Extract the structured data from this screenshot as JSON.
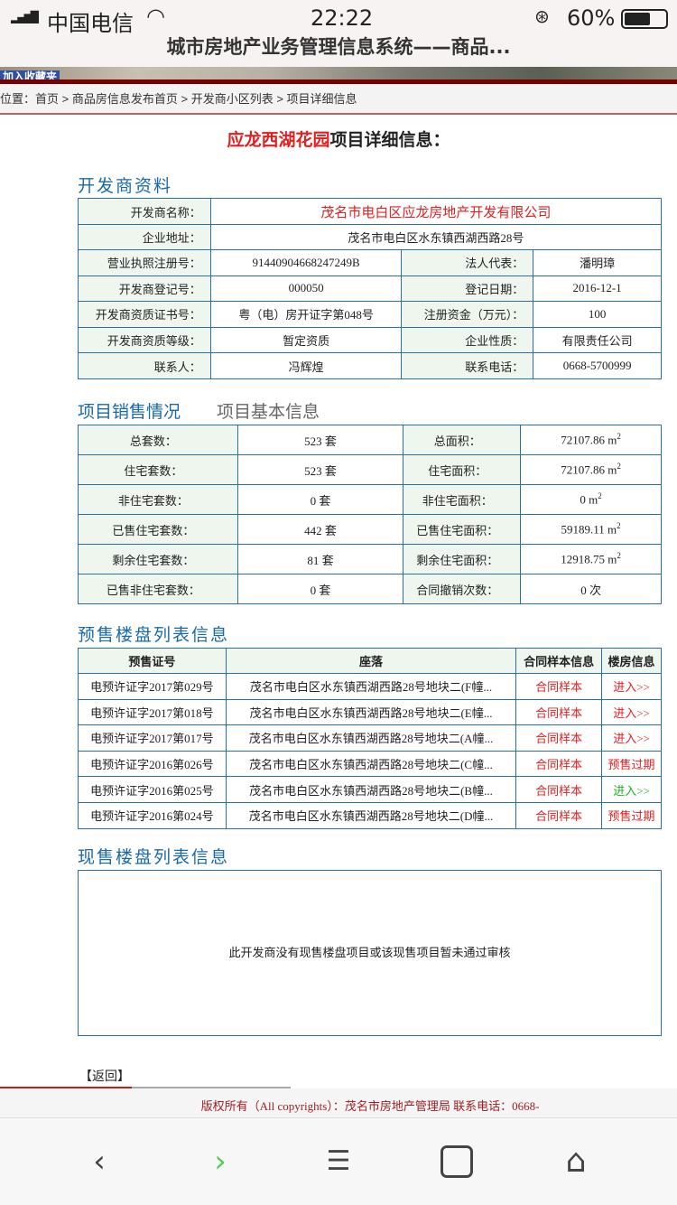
{
  "status": {
    "carrier": "中国电信",
    "time": "22:22",
    "battery": "60%"
  },
  "page_title": "城市房地产业务管理信息系统——商品...",
  "banner_text": "加入收藏夹",
  "breadcrumb": {
    "prefix": "位置：",
    "items": [
      "首页",
      "商品房信息发布首页",
      "开发商小区列表",
      "项目详细信息"
    ]
  },
  "heading": {
    "project": "应龙西湖花园",
    "suffix": "项目详细信息："
  },
  "developer": {
    "section": "开发商资料",
    "name_label": "开发商名称：",
    "name": "茂名市电白区应龙房地产开发有限公司",
    "addr_label": "企业地址：",
    "addr": "茂名市电白区水东镇西湖西路28号",
    "rows": [
      [
        "营业执照注册号：",
        "91440904668247249B",
        "法人代表：",
        "潘明璋"
      ],
      [
        "开发商登记号：",
        "000050",
        "登记日期：",
        "2016-12-1"
      ],
      [
        "开发商资质证书号：",
        "粤（电）房开证字第048号",
        "注册资金（万元）：",
        "100"
      ],
      [
        "开发商资质等级：",
        "暂定资质",
        "企业性质：",
        "有限责任公司"
      ],
      [
        "联系人：",
        "冯辉煌",
        "联系电话：",
        "0668-5700999"
      ]
    ]
  },
  "tabs": {
    "sales": "项目销售情况",
    "basic": "项目基本信息"
  },
  "sales": [
    [
      "总套数：",
      "523 套",
      "总面积：",
      "72107.86 m",
      "2"
    ],
    [
      "住宅套数：",
      "523 套",
      "住宅面积：",
      "72107.86 m",
      "2"
    ],
    [
      "非住宅套数：",
      "0 套",
      "非住宅面积：",
      "0 m",
      "2"
    ],
    [
      "已售住宅套数：",
      "442 套",
      "已售住宅面积：",
      "59189.11 m",
      "2"
    ],
    [
      "剩余住宅套数：",
      "81 套",
      "剩余住宅面积：",
      "12918.75 m",
      "2"
    ],
    [
      "已售非住宅套数：",
      "0 套",
      "合同撤销次数：",
      "0 次",
      ""
    ]
  ],
  "presale": {
    "section": "预售楼盘列表信息",
    "headers": [
      "预售证号",
      "座落",
      "合同样本信息",
      "楼房信息"
    ],
    "rows": [
      [
        "电预许证字2017第029号",
        "茂名市电白区水东镇西湖西路28号地块二(F幢...",
        "合同样本",
        "进入>>",
        "red"
      ],
      [
        "电预许证字2017第018号",
        "茂名市电白区水东镇西湖西路28号地块二(E幢...",
        "合同样本",
        "进入>>",
        "red"
      ],
      [
        "电预许证字2017第017号",
        "茂名市电白区水东镇西湖西路28号地块二(A幢...",
        "合同样本",
        "进入>>",
        "red"
      ],
      [
        "电预许证字2016第026号",
        "茂名市电白区水东镇西湖西路28号地块二(C幢...",
        "合同样本",
        "预售过期",
        "red"
      ],
      [
        "电预许证字2016第025号",
        "茂名市电白区水东镇西湖西路28号地块二(B幢...",
        "合同样本",
        "进入>>",
        "green"
      ],
      [
        "电预许证字2016第024号",
        "茂名市电白区水东镇西湖西路28号地块二(D幢...",
        "合同样本",
        "预售过期",
        "red"
      ]
    ]
  },
  "spot": {
    "section": "现售楼盘列表信息",
    "empty": "此开发商没有现售楼盘项目或该现售项目暂未通过审核"
  },
  "back": "【返回】",
  "footer": "版权所有（All copyrights）：茂名市房地产管理局 联系电话：0668-",
  "colors": {
    "accent_red": "#e02020",
    "link_blue": "#1a6aa8",
    "green": "#20b020",
    "border": "#2a70a0"
  }
}
